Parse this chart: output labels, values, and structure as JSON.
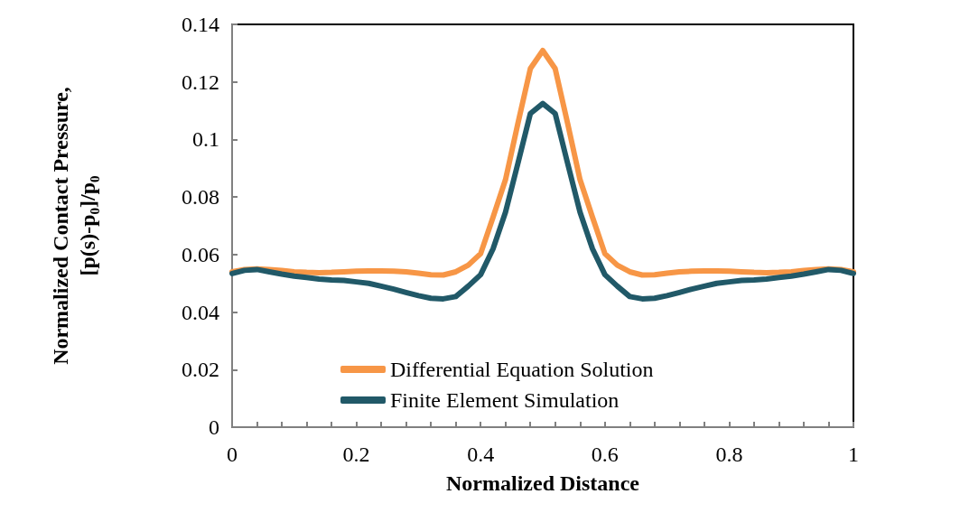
{
  "chart_data": {
    "type": "line",
    "xlabel": "Normalized Distance",
    "ylabel": "Normalized Contact Pressure,\n[p(s)-p$_{0}$]/p$_{0}$",
    "x": [
      0,
      0.02,
      0.04,
      0.06,
      0.08,
      0.1,
      0.12,
      0.14,
      0.16,
      0.18,
      0.2,
      0.22,
      0.24,
      0.26,
      0.28,
      0.3,
      0.32,
      0.34,
      0.36,
      0.38,
      0.4,
      0.42,
      0.44,
      0.46,
      0.48,
      0.5,
      0.52,
      0.54,
      0.56,
      0.58,
      0.6,
      0.62,
      0.64,
      0.66,
      0.68,
      0.7,
      0.72,
      0.74,
      0.76,
      0.78,
      0.8,
      0.82,
      0.84,
      0.86,
      0.88,
      0.9,
      0.92,
      0.94,
      0.96,
      0.98,
      1
    ],
    "series": [
      {
        "name": "Differential Equation Solution",
        "color": "#f79646",
        "values": [
          0.054,
          0.0548,
          0.055,
          0.0548,
          0.0545,
          0.054,
          0.0538,
          0.0537,
          0.0538,
          0.054,
          0.0542,
          0.0543,
          0.0543,
          0.0542,
          0.054,
          0.0535,
          0.053,
          0.0529,
          0.054,
          0.0563,
          0.0603,
          0.073,
          0.086,
          0.1056,
          0.1246,
          0.1309,
          0.1246,
          0.1056,
          0.086,
          0.073,
          0.0603,
          0.0563,
          0.054,
          0.0529,
          0.053,
          0.0535,
          0.054,
          0.0542,
          0.0543,
          0.0543,
          0.0542,
          0.054,
          0.0538,
          0.0537,
          0.0538,
          0.054,
          0.0545,
          0.0548,
          0.055,
          0.0548,
          0.054
        ]
      },
      {
        "name": "Finite Element Simulation",
        "color": "#215968",
        "values": [
          0.0534,
          0.0545,
          0.0548,
          0.054,
          0.0532,
          0.0525,
          0.052,
          0.0515,
          0.0512,
          0.051,
          0.0505,
          0.05,
          0.049,
          0.048,
          0.0468,
          0.0457,
          0.0448,
          0.0446,
          0.0454,
          0.049,
          0.053,
          0.062,
          0.0747,
          0.0917,
          0.109,
          0.1125,
          0.109,
          0.0917,
          0.0747,
          0.062,
          0.053,
          0.049,
          0.0454,
          0.0446,
          0.0448,
          0.0457,
          0.0468,
          0.048,
          0.049,
          0.05,
          0.0505,
          0.051,
          0.0512,
          0.0515,
          0.052,
          0.0525,
          0.0532,
          0.054,
          0.0548,
          0.0545,
          0.0534
        ]
      }
    ],
    "xlim": [
      0,
      1
    ],
    "xticks": [
      0,
      {
        "value": 0.04,
        "label": null
      },
      {
        "value": 0.08,
        "label": null
      },
      {
        "value": 0.12,
        "label": null
      },
      {
        "value": 0.16,
        "label": null
      },
      0.2,
      {
        "value": 0.24,
        "label": null
      },
      {
        "value": 0.28,
        "label": null
      },
      {
        "value": 0.32,
        "label": null
      },
      {
        "value": 0.36,
        "label": null
      },
      0.4,
      {
        "value": 0.44,
        "label": null
      },
      {
        "value": 0.48,
        "label": null
      },
      {
        "value": 0.52,
        "label": null
      },
      {
        "value": 0.56,
        "label": null
      },
      0.6,
      {
        "value": 0.64,
        "label": null
      },
      {
        "value": 0.68,
        "label": null
      },
      {
        "value": 0.72,
        "label": null
      },
      {
        "value": 0.76,
        "label": null
      },
      0.8,
      {
        "value": 0.84,
        "label": null
      },
      {
        "value": 0.88,
        "label": null
      },
      {
        "value": 0.92,
        "label": null
      },
      {
        "value": 0.96,
        "label": null
      },
      1
    ],
    "ylim": [
      0,
      0.14
    ],
    "yticks": [
      0,
      0.02,
      0.04,
      0.06,
      0.08,
      0.1,
      0.12,
      0.14
    ],
    "grid": false,
    "legend": "bottom",
    "marker": "none",
    "line_style": "solid"
  }
}
